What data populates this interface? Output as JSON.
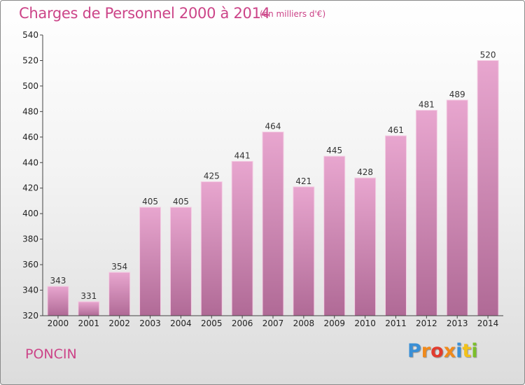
{
  "header": {
    "title": "Charges de Personnel 2000 à 2014",
    "unit": "(en milliers d'€)"
  },
  "footer": {
    "commune": "PONCIN",
    "logo": {
      "text": "Proxiti",
      "colors": [
        "#3a8fd6",
        "#f08a1c",
        "#e23b2e",
        "#f08a1c",
        "#3a8fd6",
        "#f2c21b",
        "#7bbf2a"
      ]
    }
  },
  "colors": {
    "accent": "#cc4488",
    "bar_top": "#e8a6cf",
    "bar_bottom": "#b06a96"
  },
  "chart_data": {
    "type": "bar",
    "title": "Charges de Personnel 2000 à 2014",
    "subtitle": "(en milliers d'€)",
    "categories": [
      "2000",
      "2001",
      "2002",
      "2003",
      "2004",
      "2005",
      "2006",
      "2007",
      "2008",
      "2009",
      "2010",
      "2011",
      "2012",
      "2013",
      "2014"
    ],
    "values": [
      343,
      331,
      354,
      405,
      405,
      425,
      441,
      464,
      421,
      445,
      428,
      461,
      481,
      489,
      520
    ],
    "ylim": [
      320,
      540
    ],
    "yticks": [
      320,
      340,
      360,
      380,
      400,
      420,
      440,
      460,
      480,
      500,
      520,
      540
    ],
    "grid": false,
    "legend": "none"
  }
}
